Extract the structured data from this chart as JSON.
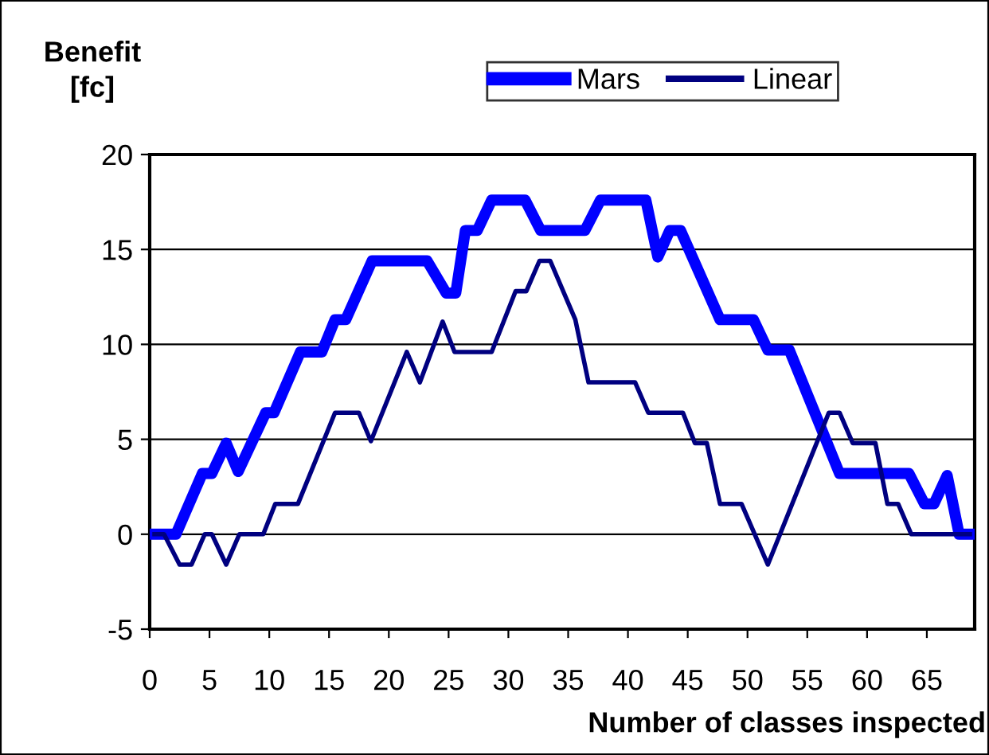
{
  "chart_data": {
    "type": "line",
    "ylabel": "Benefit\n[fc]",
    "xlabel": "Number of classes inspected",
    "xlim": [
      0,
      69
    ],
    "xticks": [
      0,
      5,
      10,
      15,
      20,
      25,
      30,
      35,
      40,
      45,
      50,
      55,
      60,
      65
    ],
    "ylim": [
      -5,
      20
    ],
    "yticks": [
      -5,
      0,
      5,
      10,
      15,
      20
    ],
    "grid": "y",
    "legend": "top",
    "marker": "none",
    "line_style": "solid",
    "series": [
      {
        "name": "Mars",
        "color": "#0000ff",
        "x": [
          0.4,
          2.2,
          4.4,
          5.2,
          6.4,
          7.4,
          9.7,
          10.4,
          12.6,
          14.4,
          15.5,
          16.4,
          18.6,
          23.2,
          24.8,
          25.6,
          26.4,
          27.4,
          28.6,
          31.4,
          32.7,
          36.4,
          37.7,
          41.5,
          42.5,
          43.5,
          44.4,
          47.7,
          50.5,
          51.7,
          53.5,
          57.7,
          63.5,
          64.8,
          65.6,
          66.7,
          67.7,
          68.6
        ],
        "values": [
          0,
          0,
          3.2,
          3.2,
          4.8,
          3.3,
          6.4,
          6.4,
          9.6,
          9.6,
          11.3,
          11.3,
          14.4,
          14.4,
          12.7,
          12.7,
          16.0,
          16.0,
          17.6,
          17.6,
          16.0,
          16.0,
          17.6,
          17.6,
          14.6,
          16.0,
          16.0,
          11.3,
          11.3,
          9.7,
          9.7,
          3.2,
          3.2,
          1.6,
          1.6,
          3.1,
          0,
          0
        ]
      },
      {
        "name": "Linear",
        "color": "#000080",
        "x": [
          0.4,
          1.2,
          2.5,
          3.5,
          4.6,
          5.2,
          6.4,
          7.5,
          9.5,
          10.5,
          12.4,
          15.5,
          17.5,
          18.5,
          21.5,
          22.6,
          24.5,
          25.5,
          28.6,
          30.6,
          31.5,
          32.6,
          33.5,
          35.6,
          36.7,
          40.6,
          41.7,
          44.6,
          45.6,
          46.6,
          47.7,
          49.5,
          51.7,
          56.8,
          57.7,
          58.8,
          60.7,
          61.7,
          62.6,
          63.7,
          68.6
        ],
        "values": [
          0,
          0,
          -1.6,
          -1.6,
          0,
          0,
          -1.6,
          0,
          0,
          1.6,
          1.6,
          6.4,
          6.4,
          4.9,
          9.6,
          8.0,
          11.2,
          9.6,
          9.6,
          12.8,
          12.8,
          14.4,
          14.4,
          11.3,
          8.0,
          8.0,
          6.4,
          6.4,
          4.8,
          4.8,
          1.6,
          1.6,
          -1.6,
          6.4,
          6.4,
          4.8,
          4.8,
          1.6,
          1.6,
          0,
          0
        ]
      }
    ]
  }
}
